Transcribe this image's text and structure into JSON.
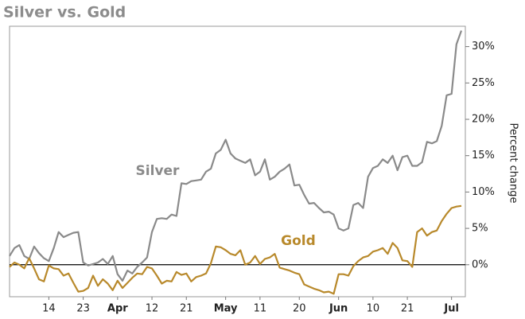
{
  "chart_data": {
    "type": "line",
    "title": "Silver vs. Gold",
    "y_label": "Percent change",
    "categories": [
      null,
      null,
      null,
      null,
      null,
      null,
      null,
      null,
      "14",
      null,
      null,
      null,
      null,
      null,
      null,
      "23",
      null,
      null,
      null,
      null,
      null,
      null,
      "Apr",
      null,
      null,
      null,
      null,
      null,
      null,
      "12",
      null,
      null,
      null,
      null,
      null,
      null,
      "21",
      null,
      null,
      null,
      null,
      null,
      null,
      null,
      "May",
      null,
      null,
      null,
      null,
      null,
      null,
      "11",
      null,
      null,
      null,
      null,
      null,
      null,
      null,
      "20",
      null,
      null,
      null,
      null,
      null,
      null,
      null,
      "Jun",
      null,
      null,
      null,
      null,
      null,
      null,
      "10",
      null,
      null,
      null,
      null,
      null,
      null,
      "21",
      null,
      null,
      null,
      null,
      null,
      null,
      null,
      null,
      "Jul",
      null,
      null
    ],
    "series": [
      {
        "name": "Silver",
        "color": "#8a8a8a",
        "values": [
          1.2,
          2.3,
          2.7,
          1.2,
          0.8,
          2.5,
          1.6,
          0.9,
          0.5,
          2.3,
          4.5,
          3.8,
          4.1,
          4.4,
          4.5,
          0.3,
          -0.1,
          0.1,
          0.3,
          0.8,
          0.1,
          1.2,
          -1.3,
          -2.2,
          -0.8,
          -1.2,
          -0.3,
          0.3,
          1.0,
          4.5,
          6.3,
          6.4,
          6.3,
          6.9,
          6.7,
          11.2,
          11.1,
          11.5,
          11.6,
          11.7,
          12.8,
          13.2,
          15.3,
          15.8,
          17.2,
          15.3,
          14.6,
          14.3,
          14.0,
          14.5,
          12.3,
          12.8,
          14.5,
          11.7,
          12.1,
          12.8,
          13.2,
          13.8,
          10.9,
          11.0,
          9.6,
          8.4,
          8.5,
          7.8,
          7.2,
          7.3,
          6.9,
          5.0,
          4.7,
          5.0,
          8.2,
          8.5,
          7.8,
          12.1,
          13.3,
          13.6,
          14.5,
          14.0,
          15.0,
          13.0,
          14.8,
          15.0,
          13.6,
          13.6,
          14.1,
          16.9,
          16.7,
          17.0,
          19.1,
          23.3,
          23.5,
          30.3,
          32.2
        ]
      },
      {
        "name": "Gold",
        "color": "#b8892b",
        "values": [
          -0.3,
          0.3,
          0,
          -0.5,
          0.9,
          -0.5,
          -2,
          -2.3,
          -0.1,
          -0.5,
          -0.6,
          -1.5,
          -1.2,
          -2.5,
          -3.7,
          -3.6,
          -3.2,
          -1.5,
          -2.9,
          -2,
          -2.6,
          -3.5,
          -2.2,
          -3.2,
          -2.5,
          -1.8,
          -1.2,
          -1.3,
          -0.3,
          -0.5,
          -1.5,
          -2.6,
          -2.2,
          -2.3,
          -1,
          -1.4,
          -1.2,
          -2.3,
          -1.7,
          -1.5,
          -1.2,
          0.2,
          2.5,
          2.4,
          2,
          1.5,
          1.3,
          2,
          0,
          0.3,
          1.2,
          0.1,
          0.8,
          1.0,
          1.5,
          -0.4,
          -0.6,
          -0.8,
          -1.1,
          -1.3,
          -2.7,
          -3,
          -3.3,
          -3.5,
          -3.8,
          -3.7,
          -4,
          -1.3,
          -1.3,
          -1.5,
          -0.2,
          0.5,
          1.0,
          1.2,
          1.8,
          2.0,
          2.3,
          1.5,
          3.0,
          2.3,
          0.6,
          0.5,
          -0.3,
          4.5,
          5.0,
          4.0,
          4.5,
          4.7,
          6.0,
          7.0,
          7.8,
          8.0,
          8.1
        ]
      }
    ],
    "ylim": [
      -4.4,
      32.8
    ],
    "yticks": [
      {
        "value": 0,
        "label": "0%"
      },
      {
        "value": 5,
        "label": "5%"
      },
      {
        "value": 10,
        "label": "10%"
      },
      {
        "value": 15,
        "label": "15%"
      },
      {
        "value": 20,
        "label": "20%"
      },
      {
        "value": 25,
        "label": "25%"
      },
      {
        "value": 30,
        "label": "30%"
      }
    ]
  }
}
